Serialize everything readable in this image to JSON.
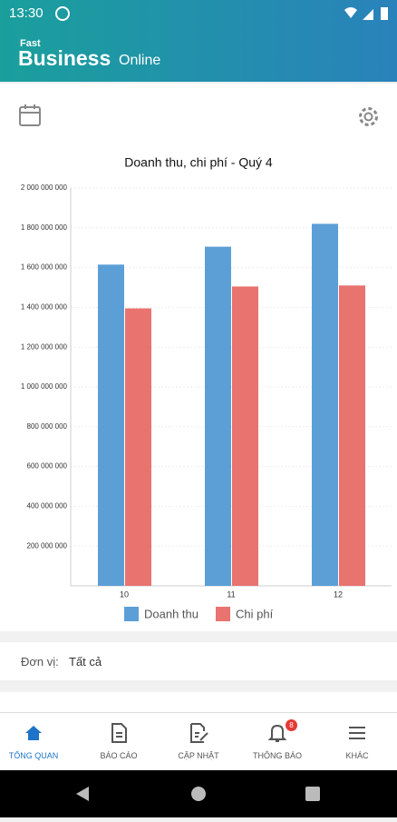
{
  "status_bar": {
    "time": "13:30"
  },
  "header": {
    "logo_small": "Fast",
    "logo_main": "Business",
    "logo_suffix": "Online"
  },
  "chart_data": {
    "type": "bar",
    "title": "Doanh thu, chi phí - Quý 4",
    "categories": [
      "10",
      "11",
      "12"
    ],
    "series": [
      {
        "name": "Doanh thu",
        "color": "#5b9fd6",
        "values": [
          1615000000,
          1705000000,
          1820000000
        ]
      },
      {
        "name": "Chi phí",
        "color": "#e8736f",
        "values": [
          1395000000,
          1505000000,
          1510000000
        ]
      }
    ],
    "ylim": [
      0,
      2000000000
    ],
    "yticks": [
      {
        "value": 200000000,
        "label": "200 000 000"
      },
      {
        "value": 400000000,
        "label": "400 000 000"
      },
      {
        "value": 600000000,
        "label": "600 000 000"
      },
      {
        "value": 800000000,
        "label": "800 000 000"
      },
      {
        "value": 1000000000,
        "label": "1 000 000 000"
      },
      {
        "value": 1200000000,
        "label": "1 200 000 000"
      },
      {
        "value": 1400000000,
        "label": "1 400 000 000"
      },
      {
        "value": 1600000000,
        "label": "1 600 000 000"
      },
      {
        "value": 1800000000,
        "label": "1 800 000 000"
      },
      {
        "value": 2000000000,
        "label": "2 000 000 000"
      }
    ],
    "grid": true,
    "legend": "bottom"
  },
  "filter": {
    "label": "Đơn vị:",
    "value": "Tất cả"
  },
  "nav": {
    "items": [
      "TỔNG QUAN",
      "BÁO CÁO",
      "CẬP NHẬT",
      "THÔNG BÁO",
      "KHÁC"
    ],
    "badge": 8
  }
}
